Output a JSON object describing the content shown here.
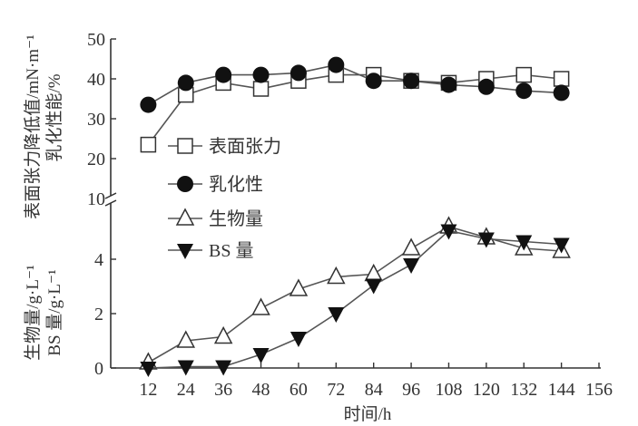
{
  "chart_data": {
    "type": "line",
    "xlabel": "时间/h",
    "x": [
      12,
      24,
      36,
      48,
      60,
      72,
      84,
      96,
      108,
      120,
      132,
      144
    ],
    "x_ticks": [
      "12",
      "24",
      "36",
      "48",
      "60",
      "72",
      "84",
      "96",
      "108",
      "120",
      "132",
      "144",
      "156"
    ],
    "xlim": [
      0,
      156
    ],
    "broken_y_axis": true,
    "upper_panel": {
      "ylabels": [
        "表面张力降低值/mN·m⁻¹",
        "乳化性能/%"
      ],
      "ylim": [
        10,
        50
      ],
      "y_ticks": [
        "50",
        "40",
        "30",
        "20",
        "10"
      ],
      "series": [
        {
          "name": "表面张力",
          "marker": "open-square",
          "values": [
            23.5,
            36,
            39,
            37.5,
            39.5,
            41,
            41,
            39.5,
            39,
            40,
            41,
            40
          ]
        },
        {
          "name": "乳化性",
          "marker": "filled-circle",
          "values": [
            33.5,
            39,
            41,
            41,
            41.5,
            43.5,
            39.5,
            39.5,
            38.5,
            38,
            37,
            36.5
          ]
        }
      ]
    },
    "lower_panel": {
      "ylabels": [
        "生物量/g·L⁻¹",
        "BS 量/g·L⁻¹"
      ],
      "ylim": [
        0,
        6.2
      ],
      "y_ticks": [
        "4",
        "2",
        "0"
      ],
      "series": [
        {
          "name": "生物量",
          "marker": "open-triangle",
          "values": [
            0.2,
            1.0,
            1.15,
            2.2,
            2.9,
            3.35,
            3.45,
            4.4,
            5.2,
            4.8,
            4.4,
            4.3
          ]
        },
        {
          "name": "BS 量",
          "marker": "filled-inverted-triangle",
          "values": [
            0,
            0.05,
            0.05,
            0.5,
            1.1,
            2.0,
            3.05,
            3.8,
            5.05,
            4.75,
            4.65,
            4.55
          ]
        }
      ]
    },
    "legend_placement": "left-middle",
    "grid": false,
    "line_color": "#555555",
    "marker_fill_dark": "#111111"
  }
}
